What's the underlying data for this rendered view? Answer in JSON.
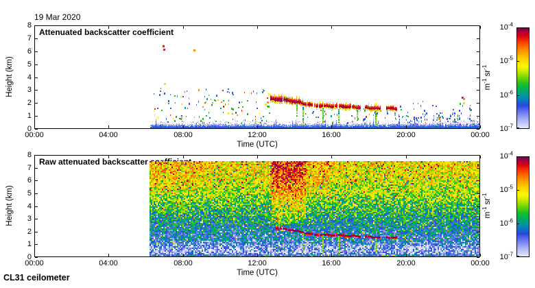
{
  "header": {
    "date": "19 Mar 2020"
  },
  "footer": {
    "instrument": "CL31 ceilometer"
  },
  "colormap": {
    "stops": [
      [
        0.0,
        "#e9eafb"
      ],
      [
        0.08,
        "#b0b8f4"
      ],
      [
        0.16,
        "#6c7bee"
      ],
      [
        0.23,
        "#2a48e0"
      ],
      [
        0.28,
        "#0b76c4"
      ],
      [
        0.33,
        "#00999a"
      ],
      [
        0.38,
        "#00ab62"
      ],
      [
        0.44,
        "#1cbe28"
      ],
      [
        0.5,
        "#6cd400"
      ],
      [
        0.56,
        "#c2e800"
      ],
      [
        0.62,
        "#fdf800"
      ],
      [
        0.69,
        "#ffd200"
      ],
      [
        0.78,
        "#ff8c00"
      ],
      [
        0.86,
        "#fa3c00"
      ],
      [
        0.92,
        "#d80010"
      ],
      [
        0.96,
        "#a80040"
      ],
      [
        1.0,
        "#7a0055"
      ]
    ]
  },
  "palette": {
    "red": "#e02800",
    "orange": "#ff9000",
    "yellow": "#ffe000",
    "green": "#28b41e",
    "cyan": "#00a0aa",
    "blue": "#4053e8",
    "lightblue": "#93a0f2"
  },
  "chart_data": [
    {
      "type": "heatmap",
      "title": "Attenuated backscatter coefficient",
      "xlabel": "Time (UTC)",
      "ylabel": "Height (km)",
      "x_tick_labels": [
        "00:00",
        "04:00",
        "08:00",
        "12:00",
        "16:00",
        "20:00",
        "00:00"
      ],
      "x_tick_hours": [
        0,
        4,
        8,
        12,
        16,
        20,
        24
      ],
      "y_tick_labels": [
        "0",
        "1",
        "2",
        "3",
        "4",
        "5",
        "6",
        "7",
        "8"
      ],
      "x_range_hours": [
        0,
        24
      ],
      "y_range_km": [
        0,
        8
      ],
      "data_window_hours": [
        6.25,
        24
      ],
      "data_top_km": 7.5,
      "colorbar": {
        "scale": "log10",
        "range_log10": [
          -7,
          -4
        ],
        "unit": [
          {
            "t": "m"
          },
          {
            "t": "-1",
            "sup": true
          },
          {
            "t": " sr"
          },
          {
            "t": "-1",
            "sup": true
          }
        ],
        "tick_labels": [
          [
            {
              "t": "10"
            },
            {
              "t": "-4",
              "sup": true
            }
          ],
          [
            {
              "t": "10"
            },
            {
              "t": "-5",
              "sup": true
            }
          ],
          [
            {
              "t": "10"
            },
            {
              "t": "-6",
              "sup": true
            }
          ],
          [
            {
              "t": "10"
            },
            {
              "t": "-7",
              "sup": true
            }
          ]
        ]
      },
      "surface_layer": {
        "base_km": 0.26,
        "spike_extra_km": 0.4,
        "t_bottom": 0.3,
        "t_top": 0.1
      },
      "speck_field": {
        "regions": [
          {
            "hours": [
              6.4,
              12.65
            ],
            "km": [
              0.45,
              3.2
            ],
            "count": 130,
            "colors": [
              [
                "green",
                30
              ],
              [
                "blue",
                26
              ],
              [
                "cyan",
                16
              ],
              [
                "red",
                10
              ],
              [
                "orange",
                9
              ],
              [
                "yellow",
                9
              ]
            ]
          },
          {
            "hours": [
              19.3,
              23.95
            ],
            "km": [
              0.35,
              1.3
            ],
            "count": 120,
            "colors": [
              [
                "blue",
                62
              ],
              [
                "cyan",
                18
              ],
              [
                "lightblue",
                10
              ],
              [
                "green",
                6
              ],
              [
                "red",
                2
              ],
              [
                "orange",
                2
              ]
            ]
          },
          {
            "hours": [
              19.5,
              23.5
            ],
            "km": [
              1.3,
              2.2
            ],
            "count": 16,
            "colors": [
              [
                "blue",
                55
              ],
              [
                "green",
                25
              ],
              [
                "cyan",
                20
              ]
            ]
          },
          {
            "hours": [
              14.5,
              19.0
            ],
            "km": [
              0.4,
              1.6
            ],
            "count": 55,
            "colors": [
              [
                "blue",
                40
              ],
              [
                "green",
                25
              ],
              [
                "cyan",
                20
              ],
              [
                "yellow",
                5
              ],
              [
                "orange",
                5
              ],
              [
                "red",
                5
              ]
            ]
          }
        ]
      },
      "notable_points": [
        [
          6.95,
          6.4,
          "red"
        ],
        [
          6.98,
          6.15,
          "red"
        ],
        [
          8.6,
          6.08,
          "orange"
        ],
        [
          7.0,
          3.5,
          "yellow"
        ],
        [
          12.45,
          1.9,
          "yellow"
        ],
        [
          12.55,
          2.05,
          "orange"
        ],
        [
          12.6,
          1.75,
          "green"
        ],
        [
          23.05,
          2.45,
          "red"
        ],
        [
          23.12,
          2.35,
          "orange"
        ],
        [
          23.1,
          2.0,
          "yellow"
        ],
        [
          23.5,
          1.48,
          "cyan"
        ]
      ],
      "cloud_segments": [
        {
          "t0": 12.7,
          "h0": 2.32,
          "t1": 13.5,
          "h1": 2.22,
          "thick": 0.13,
          "hair": 0.5
        },
        {
          "t0": 13.5,
          "h0": 2.22,
          "t1": 14.3,
          "h1": 2.02,
          "thick": 0.12,
          "hair": 0.45
        },
        {
          "t0": 14.3,
          "h0": 2.02,
          "t1": 14.95,
          "h1": 1.8,
          "thick": 0.09,
          "hair": 0.3
        },
        {
          "t0": 15.05,
          "h0": 1.78,
          "t1": 16.28,
          "h1": 1.74,
          "thick": 0.08,
          "hair": 0.25
        },
        {
          "t0": 16.35,
          "h0": 1.74,
          "t1": 17.55,
          "h1": 1.64,
          "thick": 0.08,
          "hair": 0.2
        },
        {
          "t0": 17.8,
          "h0": 1.63,
          "t1": 18.6,
          "h1": 1.56,
          "thick": 0.07,
          "hair": 0.15
        },
        {
          "t0": 18.95,
          "h0": 1.58,
          "t1": 19.5,
          "h1": 1.55,
          "thick": 0.07,
          "hair": 0.15
        }
      ],
      "precip_streaks": [
        {
          "hour": 14.1,
          "to_km": 1.0
        },
        {
          "hour": 14.45,
          "to_km": 0.25
        },
        {
          "hour": 15.5,
          "to_km": 0.3
        },
        {
          "hour": 16.35,
          "to_km": 0.25
        },
        {
          "hour": 17.35,
          "to_km": 0.6
        },
        {
          "hour": 18.35,
          "to_km": 0.3
        }
      ]
    },
    {
      "type": "heatmap",
      "title": "Raw attenuated backscatter coefficient",
      "xlabel": "Time (UTC)",
      "ylabel": "Height (km)",
      "x_tick_labels": [
        "00:00",
        "04:00",
        "08:00",
        "12:00",
        "16:00",
        "20:00",
        "00:00"
      ],
      "x_tick_hours": [
        0,
        4,
        8,
        12,
        16,
        20,
        24
      ],
      "y_tick_labels": [
        "0",
        "1",
        "2",
        "3",
        "4",
        "5",
        "6",
        "7",
        "8"
      ],
      "x_range_hours": [
        0,
        24
      ],
      "y_range_km": [
        0,
        8
      ],
      "data_window_hours": [
        6.25,
        24
      ],
      "data_top_km": 7.5,
      "colorbar": {
        "scale": "log10",
        "range_log10": [
          -7,
          -4
        ],
        "unit": [
          {
            "t": "m"
          },
          {
            "t": "-1",
            "sup": true
          },
          {
            "t": " sr"
          },
          {
            "t": "-1",
            "sup": true
          }
        ],
        "tick_labels": [
          [
            {
              "t": "10"
            },
            {
              "t": "-4",
              "sup": true
            }
          ],
          [
            {
              "t": "10"
            },
            {
              "t": "-5",
              "sup": true
            }
          ],
          [
            {
              "t": "10"
            },
            {
              "t": "-6",
              "sup": true
            }
          ],
          [
            {
              "t": "10"
            },
            {
              "t": "-7",
              "sup": true
            }
          ]
        ]
      },
      "profile": [
        [
          0.0,
          0.3
        ],
        [
          0.12,
          0.3
        ],
        [
          0.22,
          0.13
        ],
        [
          0.5,
          0.1
        ],
        [
          0.85,
          0.14
        ],
        [
          1.3,
          0.24
        ],
        [
          2.0,
          0.28
        ],
        [
          2.6,
          0.32
        ],
        [
          3.2,
          0.37
        ],
        [
          4.0,
          0.45
        ],
        [
          5.0,
          0.53
        ],
        [
          6.0,
          0.6
        ],
        [
          7.0,
          0.64
        ],
        [
          7.5,
          0.66
        ]
      ],
      "noise_amp": 0.17,
      "plume_boosts": [
        {
          "hours": [
            12.75,
            14.55
          ],
          "min_km": 3.0,
          "amount": 0.15
        },
        {
          "hours": [
            12.6,
            15.9
          ],
          "min_km": 5.0,
          "amount": 0.07
        },
        {
          "hours": [
            6.25,
            9.6
          ],
          "min_km": 5.5,
          "amount": 0.05
        }
      ],
      "cloud_segments": [
        {
          "t0": 13.0,
          "h0": 2.28,
          "t1": 13.5,
          "h1": 2.22,
          "thick": 0.08
        },
        {
          "t0": 13.5,
          "h0": 2.22,
          "t1": 14.3,
          "h1": 2.02,
          "thick": 0.08
        },
        {
          "t0": 14.3,
          "h0": 2.02,
          "t1": 14.95,
          "h1": 1.8,
          "thick": 0.07
        },
        {
          "t0": 15.05,
          "h0": 1.78,
          "t1": 16.28,
          "h1": 1.74,
          "thick": 0.07
        },
        {
          "t0": 16.35,
          "h0": 1.74,
          "t1": 17.55,
          "h1": 1.64,
          "thick": 0.07
        },
        {
          "t0": 17.8,
          "h0": 1.63,
          "t1": 18.6,
          "h1": 1.56,
          "thick": 0.06
        },
        {
          "t0": 18.95,
          "h0": 1.58,
          "t1": 19.5,
          "h1": 1.55,
          "thick": 0.06
        }
      ],
      "precip_streaks": [
        {
          "hour": 14.45,
          "to_km": 0.25
        },
        {
          "hour": 15.5,
          "to_km": 0.3
        },
        {
          "hour": 16.35,
          "to_km": 0.25
        },
        {
          "hour": 18.35,
          "to_km": 0.3
        }
      ]
    }
  ]
}
